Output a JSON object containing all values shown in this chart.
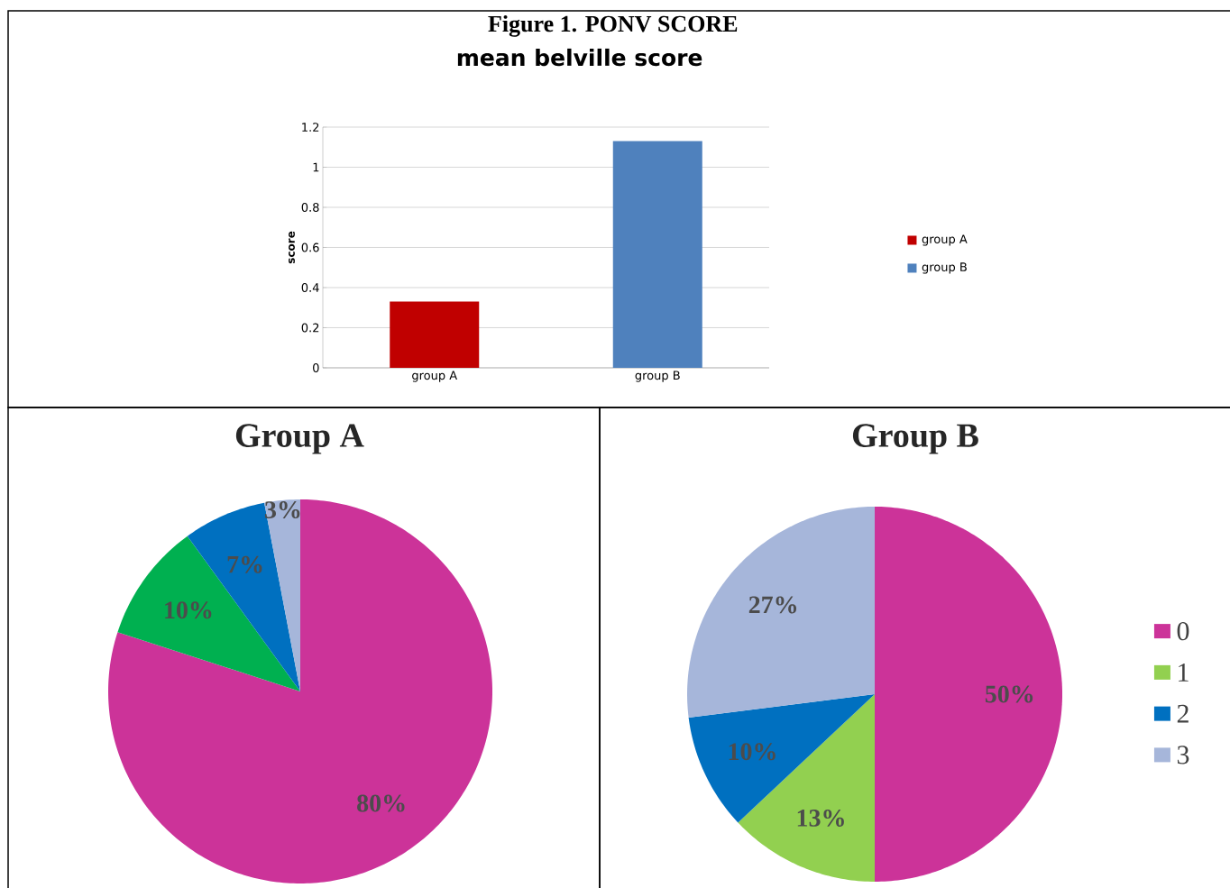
{
  "chart_data": [
    {
      "type": "bar",
      "title": "Figure 1. PONV SCORE",
      "subtitle": "mean belville score",
      "ylabel": "score",
      "categories": [
        "group A",
        "group B"
      ],
      "series": [
        {
          "name": "group A",
          "color": "#c00000",
          "values": [
            0.33,
            null
          ]
        },
        {
          "name": "group B",
          "color": "#4f81bd",
          "values": [
            null,
            1.13
          ]
        }
      ],
      "ylim": [
        0,
        1.2
      ],
      "yticks": [
        0,
        0.2,
        0.4,
        0.6,
        0.8,
        1,
        1.2
      ],
      "grid": "y",
      "legend": "right"
    },
    {
      "type": "pie",
      "title": "Group A",
      "categories": [
        null,
        null,
        null,
        null
      ],
      "values": [
        80,
        10,
        7,
        3
      ],
      "colors": [
        "#cc3399",
        "#00b050",
        "#0070c0",
        "#a6b6da"
      ],
      "value_labels": [
        "80%",
        "10%",
        "7%",
        "3%"
      ]
    },
    {
      "type": "pie",
      "title": "Group B",
      "categories": [
        "0",
        "1",
        "2",
        "3"
      ],
      "values": [
        50,
        13,
        10,
        27
      ],
      "colors": [
        "#cc3399",
        "#92d050",
        "#0070c0",
        "#a6b6da"
      ],
      "value_labels": [
        "50%",
        "13%",
        "10%",
        "27%"
      ],
      "legend": "right"
    }
  ]
}
